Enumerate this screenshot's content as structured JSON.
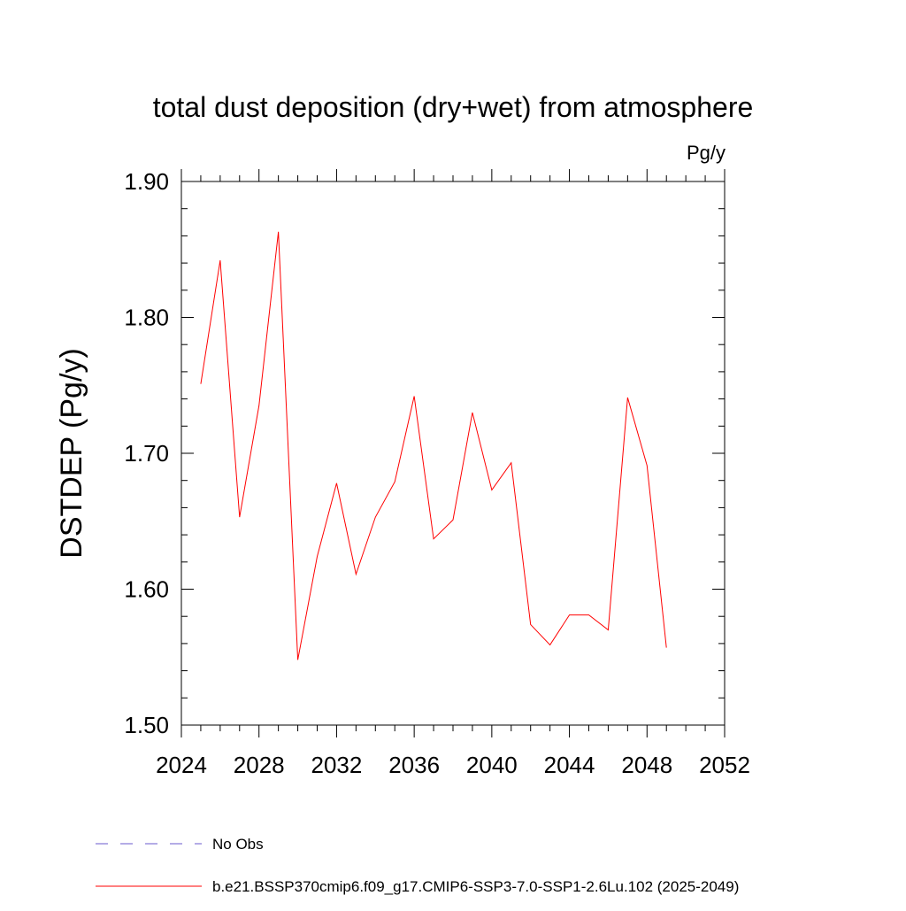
{
  "chart_data": {
    "type": "line",
    "title": "total dust deposition (dry+wet) from atmosphere",
    "units_label": "Pg/y",
    "xlabel": "",
    "ylabel": "DSTDEP  (Pg/y)",
    "xlim": [
      2024,
      2052
    ],
    "ylim": [
      1.5,
      1.9
    ],
    "x_ticks": [
      2024,
      2028,
      2032,
      2036,
      2040,
      2044,
      2048,
      2052
    ],
    "x_tick_labels": [
      "2024",
      "2028",
      "2032",
      "2036",
      "2040",
      "2044",
      "2048",
      "2052"
    ],
    "y_ticks": [
      1.5,
      1.6,
      1.7,
      1.8,
      1.9
    ],
    "y_tick_labels": [
      "1.50",
      "1.60",
      "1.70",
      "1.80",
      "1.90"
    ],
    "grid": false,
    "series": [
      {
        "name": "b.e21.BSSP370cmip6.f09_g17.CMIP6-SSP3-7.0-SSP1-2.6Lu.102 (2025-2049)",
        "color": "#ff0000",
        "x": [
          2025,
          2026,
          2027,
          2028,
          2029,
          2030,
          2031,
          2032,
          2033,
          2034,
          2035,
          2036,
          2037,
          2038,
          2039,
          2040,
          2041,
          2042,
          2043,
          2044,
          2045,
          2046,
          2047,
          2048,
          2049
        ],
        "values": [
          1.751,
          1.842,
          1.653,
          1.735,
          1.863,
          1.548,
          1.624,
          1.678,
          1.611,
          1.653,
          1.679,
          1.742,
          1.637,
          1.651,
          1.73,
          1.673,
          1.693,
          1.574,
          1.559,
          1.581,
          1.581,
          1.57,
          1.741,
          1.691,
          1.557
        ]
      }
    ],
    "legend": {
      "position": "bottom-left",
      "entries": [
        {
          "label": "No Obs",
          "color": "#6a5acd",
          "style": "dashed"
        },
        {
          "label": "b.e21.BSSP370cmip6.f09_g17.CMIP6-SSP3-7.0-SSP1-2.6Lu.102 (2025-2049)",
          "color": "#ff0000",
          "style": "solid"
        }
      ]
    }
  }
}
